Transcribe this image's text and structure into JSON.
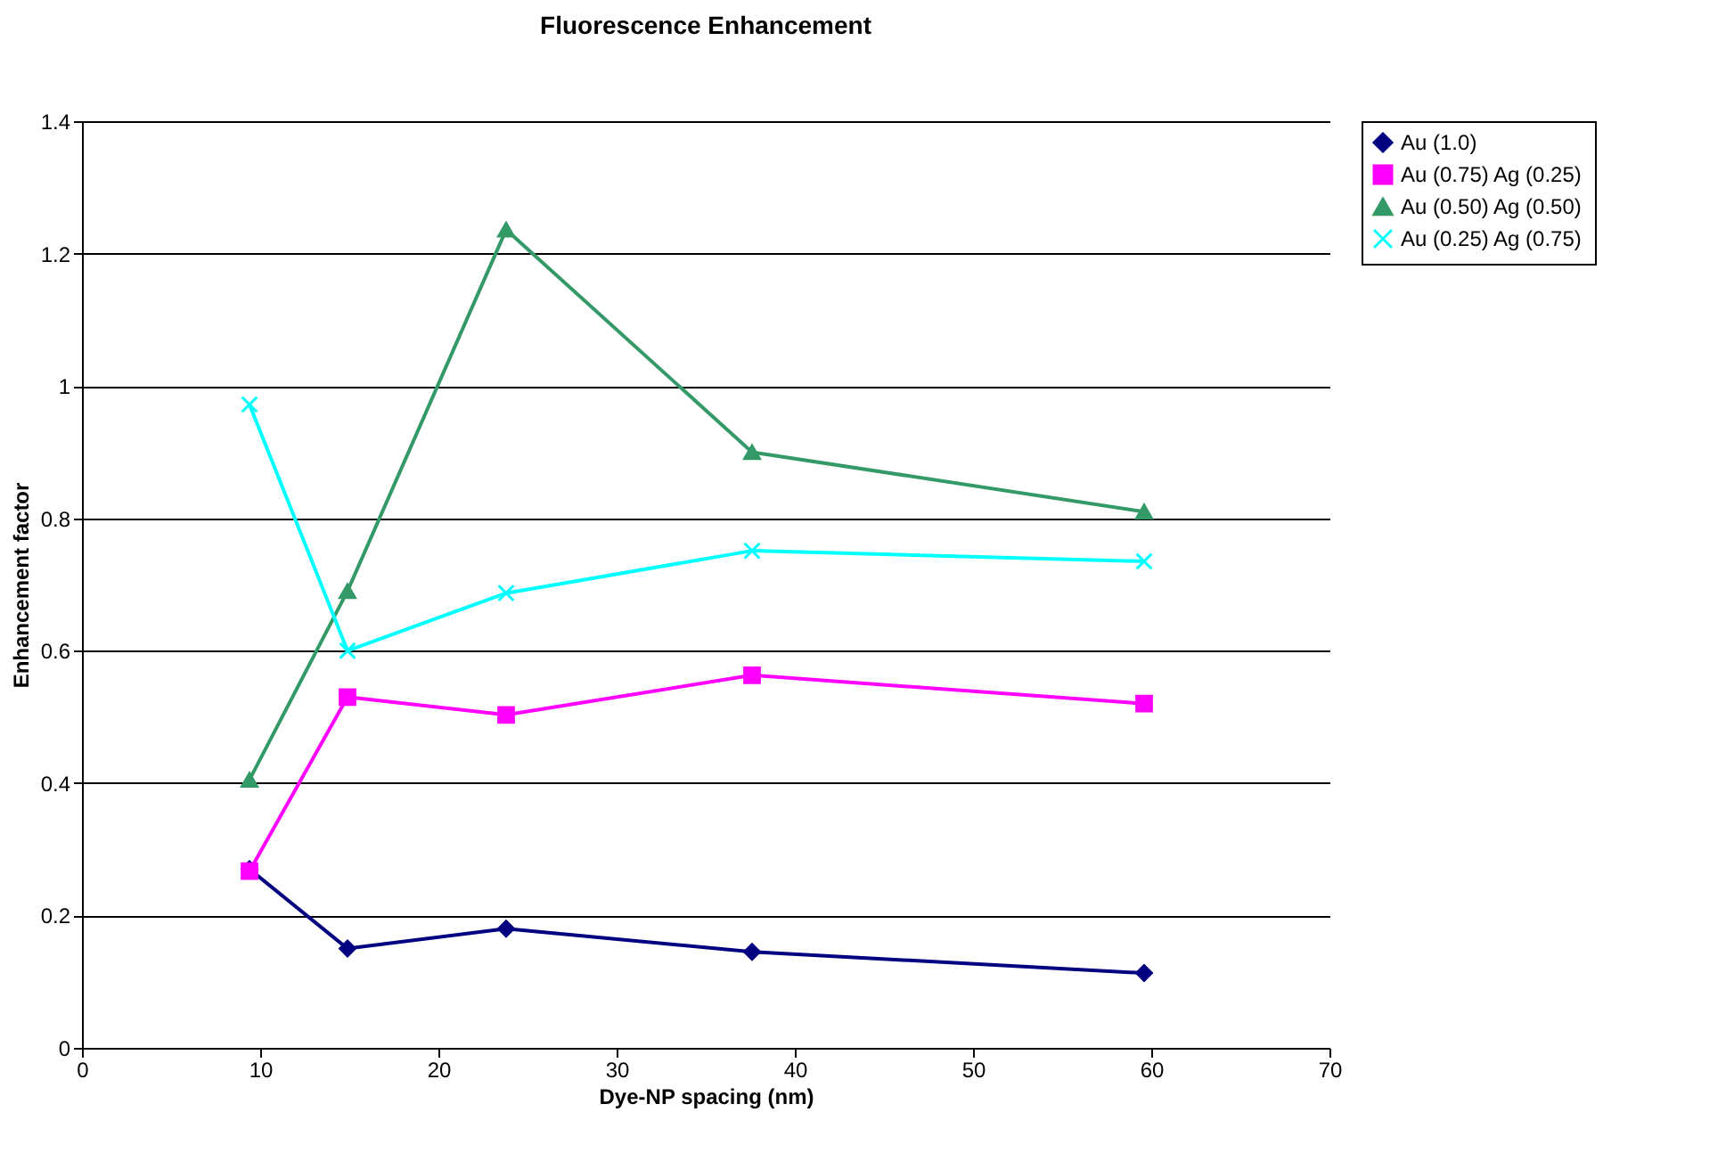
{
  "chart_data": {
    "type": "line",
    "title": "Fluorescence Enhancement",
    "xlabel": "Dye-NP spacing (nm)",
    "ylabel": "Enhancement factor",
    "x": [
      9.4,
      14.9,
      23.8,
      37.6,
      59.6
    ],
    "series": [
      {
        "name": "Au (1.0)",
        "color": "#000080",
        "marker": "diamond",
        "values": [
          0.27,
          0.15,
          0.18,
          0.145,
          0.113
        ]
      },
      {
        "name": "Au (0.75) Ag (0.25)",
        "color": "#ff00ff",
        "marker": "square",
        "values": [
          0.267,
          0.53,
          0.503,
          0.563,
          0.52
        ]
      },
      {
        "name": "Au (0.50) Ag (0.50)",
        "color": "#339966",
        "marker": "triangle",
        "values": [
          0.405,
          0.69,
          1.236,
          0.9,
          0.81
        ]
      },
      {
        "name": "Au (0.25) Ag (0.75)",
        "color": "#00ffff",
        "marker": "cross",
        "values": [
          0.972,
          0.6,
          0.687,
          0.751,
          0.735
        ]
      }
    ],
    "xlim": [
      0,
      70
    ],
    "xticks": [
      0,
      10,
      20,
      30,
      40,
      50,
      60,
      70
    ],
    "ylim": [
      0,
      1.4
    ],
    "yticks": [
      0,
      0.2,
      0.4,
      0.6,
      0.8,
      {
        "value": 1,
        "label": "1"
      },
      1.2,
      1.4
    ],
    "grid": "y",
    "legend": "right",
    "line_style": "solid"
  }
}
